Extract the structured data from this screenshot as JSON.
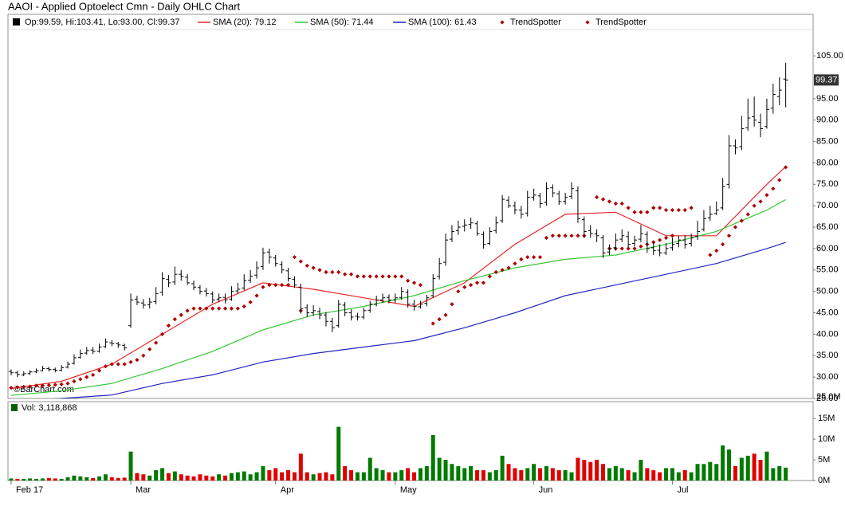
{
  "chart_data": {
    "type": "ohlc",
    "title": "AAOI - Applied Optoelect Cmn - Daily OHLC Chart",
    "watermark": "©BarChart.com",
    "xlim": [
      -0.5,
      127.35
    ],
    "xticks": [
      {
        "value": 0,
        "label": "Feb 17"
      },
      {
        "value": 19,
        "label": "Mar"
      },
      {
        "value": 42,
        "label": "Apr"
      },
      {
        "value": 61,
        "label": "May"
      },
      {
        "value": 83,
        "label": "Jun"
      },
      {
        "value": 105,
        "label": "Jul"
      }
    ],
    "ylim": [
      25,
      114.7
    ],
    "yticks": [
      {
        "value": 25,
        "label": "25.00"
      },
      {
        "value": 30,
        "label": "30.00"
      },
      {
        "value": 35,
        "label": "35.00"
      },
      {
        "value": 40,
        "label": "40.00"
      },
      {
        "value": 45,
        "label": "45.00"
      },
      {
        "value": 50,
        "label": "50.00"
      },
      {
        "value": 55,
        "label": "55.00"
      },
      {
        "value": 60,
        "label": "60.00"
      },
      {
        "value": 65,
        "label": "65.00"
      },
      {
        "value": 70,
        "label": "70.00"
      },
      {
        "value": 75,
        "label": "75.00"
      },
      {
        "value": 80,
        "label": "80.00"
      },
      {
        "value": 85,
        "label": "85.00"
      },
      {
        "value": 90,
        "label": "90.00"
      },
      {
        "value": 95,
        "label": "95.00"
      },
      {
        "value": 105,
        "label": "105.00"
      }
    ],
    "grid": false,
    "last_price": 99.37,
    "ohlc": {
      "name": "Op:99.59, Hi:103.41, Lo:93.00, Cl:99.37",
      "color": "#000000",
      "open": [
        31.3,
        31.0,
        30.5,
        30.8,
        31.2,
        31.5,
        32.0,
        31.8,
        31.6,
        32.3,
        33.2,
        34.6,
        35.6,
        36.3,
        36.0,
        37.1,
        38.0,
        37.8,
        37.4,
        42.0,
        48.2,
        47.3,
        46.9,
        47.6,
        49.8,
        52.8,
        52.2,
        54.0,
        53.3,
        51.8,
        50.9,
        50.1,
        49.4,
        48.2,
        48.6,
        48.2,
        50.1,
        50.8,
        52.6,
        53.8,
        55.8,
        59.2,
        57.8,
        56.3,
        54.8,
        52.8,
        51.0,
        46.2,
        45.0,
        45.3,
        44.5,
        43.0,
        42.0,
        46.8,
        45.0,
        44.2,
        44.0,
        45.6,
        47.0,
        48.0,
        48.6,
        48.0,
        48.6,
        49.8,
        47.0,
        46.4,
        47.2,
        49.0,
        53.5,
        56.8,
        62.2,
        64.2,
        65.2,
        65.6,
        65.8,
        63.3,
        61.2,
        64.2,
        66.5,
        71.3,
        70.0,
        69.0,
        68.3,
        72.0,
        72.3,
        70.8,
        74.2,
        72.8,
        71.0,
        72.2,
        73.5,
        66.8,
        64.2,
        63.4,
        62.5,
        59.2,
        60.2,
        62.2,
        62.8,
        61.2,
        62.2,
        63.3,
        60.2,
        59.6,
        59.0,
        60.2,
        61.2,
        62.0,
        61.2,
        62.8,
        64.5,
        67.2,
        68.2,
        69.5,
        75.0,
        84.0,
        83.8,
        88.2,
        90.8,
        89.5,
        88.5,
        92.8,
        95.5,
        99.59
      ],
      "high": [
        31.8,
        31.5,
        31.3,
        31.6,
        32.0,
        32.6,
        32.4,
        32.2,
        32.8,
        33.6,
        35.3,
        36.4,
        37.0,
        37.0,
        37.8,
        39.0,
        38.6,
        38.2,
        37.8,
        49.5,
        49.0,
        48.2,
        48.5,
        51.0,
        54.5,
        53.8,
        55.8,
        55.0,
        54.0,
        52.5,
        51.5,
        50.8,
        50.0,
        49.5,
        49.5,
        51.2,
        52.0,
        54.0,
        55.0,
        57.0,
        60.2,
        60.0,
        58.5,
        57.0,
        55.5,
        53.5,
        51.8,
        47.0,
        46.8,
        46.2,
        45.2,
        43.8,
        48.0,
        47.5,
        45.8,
        45.0,
        46.2,
        47.8,
        49.0,
        49.5,
        49.3,
        49.5,
        51.0,
        50.5,
        48.0,
        47.8,
        49.2,
        54.0,
        57.8,
        63.5,
        65.5,
        66.5,
        66.8,
        67.2,
        66.5,
        64.0,
        65.0,
        67.5,
        72.5,
        72.2,
        71.0,
        70.0,
        73.5,
        74.0,
        73.0,
        75.5,
        75.0,
        73.5,
        73.0,
        75.5,
        74.5,
        67.5,
        65.5,
        64.5,
        63.2,
        61.0,
        63.5,
        64.5,
        64.0,
        63.0,
        65.5,
        64.0,
        61.5,
        61.0,
        61.3,
        62.5,
        63.0,
        63.2,
        63.5,
        66.5,
        69.0,
        70.0,
        71.0,
        76.5,
        86.5,
        85.5,
        91.0,
        95.0,
        95.5,
        91.5,
        95.0,
        98.5,
        100.0,
        103.41
      ],
      "low": [
        30.4,
        30.0,
        30.2,
        30.5,
        30.9,
        31.3,
        31.3,
        31.1,
        31.3,
        32.0,
        32.9,
        34.3,
        35.2,
        35.4,
        35.7,
        36.8,
        37.2,
        36.8,
        36.2,
        41.5,
        46.8,
        46.0,
        46.0,
        47.0,
        49.0,
        51.0,
        51.5,
        52.5,
        51.5,
        50.3,
        49.3,
        48.8,
        47.3,
        47.5,
        47.2,
        47.8,
        49.5,
        50.3,
        52.0,
        53.0,
        55.0,
        56.5,
        55.8,
        54.2,
        52.3,
        50.8,
        44.8,
        44.0,
        44.3,
        43.5,
        41.8,
        40.5,
        41.5,
        44.2,
        43.2,
        43.2,
        43.5,
        45.0,
        46.5,
        47.3,
        47.2,
        47.3,
        48.0,
        46.2,
        45.5,
        46.0,
        46.5,
        48.5,
        52.8,
        56.0,
        61.5,
        63.2,
        64.0,
        64.6,
        63.0,
        60.0,
        60.8,
        63.5,
        66.0,
        69.5,
        68.0,
        67.0,
        67.5,
        71.2,
        69.5,
        70.0,
        72.0,
        70.2,
        70.3,
        71.5,
        66.0,
        62.5,
        62.5,
        61.5,
        57.8,
        58.5,
        59.5,
        61.5,
        60.3,
        60.5,
        61.5,
        59.0,
        58.5,
        58.2,
        58.5,
        59.5,
        60.3,
        60.0,
        60.5,
        62.0,
        64.0,
        66.5,
        67.8,
        69.0,
        74.0,
        82.0,
        83.0,
        87.5,
        88.5,
        86.0,
        88.0,
        91.5,
        93.5,
        93
      ],
      "close": [
        31.0,
        30.6,
        30.8,
        31.2,
        31.5,
        32.0,
        31.8,
        31.6,
        32.2,
        33.0,
        34.5,
        35.5,
        36.2,
        36.0,
        37.0,
        38.2,
        37.8,
        37.5,
        36.8,
        48.0,
        47.5,
        46.8,
        47.5,
        49.5,
        53.0,
        52.0,
        54.0,
        53.5,
        52.0,
        51.0,
        50.0,
        49.5,
        48.0,
        48.5,
        48.0,
        50.0,
        50.5,
        52.5,
        53.5,
        55.5,
        59.0,
        58.0,
        56.5,
        55.0,
        53.0,
        51.5,
        46.0,
        45.0,
        45.5,
        44.5,
        43.0,
        41.5,
        47.0,
        45.0,
        44.0,
        44.0,
        45.5,
        47.0,
        48.0,
        48.5,
        48.0,
        48.5,
        50.0,
        47.0,
        46.5,
        47.0,
        48.5,
        53.0,
        56.5,
        62.0,
        64.0,
        65.0,
        65.5,
        66.0,
        63.5,
        61.0,
        64.0,
        66.0,
        71.5,
        70.0,
        69.0,
        68.0,
        72.0,
        72.5,
        70.5,
        74.0,
        73.0,
        71.0,
        72.0,
        74.0,
        67.0,
        64.0,
        63.5,
        63.0,
        59.0,
        60.0,
        62.0,
        63.0,
        61.0,
        62.0,
        63.5,
        60.0,
        59.5,
        59.0,
        60.0,
        61.0,
        62.0,
        61.0,
        62.5,
        64.0,
        67.0,
        68.0,
        69.0,
        74.5,
        84.0,
        83.5,
        88.0,
        90.5,
        90.0,
        88.0,
        92.5,
        96.0,
        97.0,
        99.37
      ]
    },
    "lines": [
      {
        "name": "SMA (20): 79.12",
        "color": "#e8262a",
        "x": [
          0,
          8,
          16,
          24,
          32,
          40,
          48,
          56,
          64,
          72,
          80,
          88,
          96,
          104,
          112,
          120,
          123
        ],
        "values": [
          27.3,
          29,
          33,
          40,
          47,
          52,
          50.5,
          48.5,
          46.5,
          52,
          61,
          68,
          68.5,
          63,
          63,
          75,
          79.12
        ]
      },
      {
        "name": "SMA (50): 71.44",
        "color": "#35c635",
        "x": [
          0,
          8,
          16,
          24,
          32,
          40,
          48,
          56,
          64,
          72,
          80,
          88,
          96,
          104,
          112,
          120,
          123
        ],
        "values": [
          25.7,
          26.8,
          28.5,
          32,
          36,
          41,
          44.5,
          46.5,
          49,
          52.5,
          55.5,
          57.5,
          58.5,
          61,
          64,
          69,
          71.44
        ]
      },
      {
        "name": "SMA (100): 61.43",
        "color": "#2323c0",
        "x": [
          0,
          8,
          16,
          24,
          32,
          40,
          48,
          56,
          64,
          72,
          80,
          88,
          96,
          104,
          112,
          120,
          123
        ],
        "values": [
          24.3,
          25,
          25.8,
          28.5,
          30.5,
          33.5,
          35.5,
          37,
          38.5,
          41.5,
          45,
          49,
          51.5,
          54,
          56.5,
          60,
          61.43
        ]
      }
    ],
    "markers": [
      {
        "name": "TrendSpotter",
        "color": "#b00000",
        "values": [
          27.5,
          27.6,
          27.7,
          27.8,
          28.0,
          28.0,
          28.1,
          28.2,
          28.3,
          28.5,
          29.0,
          29.5,
          30.0,
          30.5,
          31.5,
          32.5,
          33.0,
          33.0,
          33.0,
          33.5,
          34,
          35,
          36.5,
          38,
          40,
          42,
          43.5,
          44.5,
          45.5,
          46,
          46,
          46,
          46,
          46,
          46,
          46,
          46,
          46.5,
          47.5,
          49,
          51,
          51.5,
          51.5,
          51.5,
          51.5,
          null,
          45.5,
          null,
          null,
          null,
          null,
          null,
          null,
          null,
          null,
          null,
          null,
          null,
          null,
          null,
          null,
          null,
          null,
          null,
          null,
          null,
          null,
          42.5,
          43.5,
          44.5,
          47,
          50,
          51,
          51.5,
          52,
          52,
          53.5,
          54.5,
          55,
          55.5,
          56.5,
          57.5,
          58,
          58,
          58,
          62.5,
          63,
          63,
          63,
          63,
          63,
          63,
          null,
          null,
          null,
          60,
          60,
          60,
          60,
          60,
          60.5,
          61,
          61.5,
          62,
          62.5,
          63,
          null,
          null,
          null,
          null,
          null,
          58.5,
          59.5,
          61,
          63,
          65,
          66.5,
          68,
          70,
          71,
          72.5,
          74,
          76,
          79
        ]
      },
      {
        "name": "TrendSpotter",
        "color": "#b00000",
        "values": [
          null,
          null,
          null,
          null,
          null,
          null,
          null,
          null,
          null,
          null,
          null,
          null,
          null,
          null,
          null,
          null,
          null,
          null,
          null,
          null,
          null,
          null,
          null,
          null,
          null,
          null,
          null,
          null,
          null,
          null,
          null,
          null,
          null,
          null,
          null,
          null,
          null,
          null,
          null,
          null,
          null,
          null,
          null,
          null,
          null,
          58,
          57,
          56,
          55.5,
          55,
          54.5,
          54.5,
          54.5,
          54,
          54,
          53.5,
          53.5,
          53.5,
          53.5,
          53.5,
          53.5,
          53.5,
          53.5,
          52.5,
          52,
          51.5,
          null,
          null,
          null,
          null,
          null,
          null,
          null,
          null,
          null,
          null,
          null,
          null,
          null,
          null,
          null,
          null,
          null,
          null,
          null,
          null,
          null,
          null,
          null,
          null,
          null,
          null,
          null,
          72,
          71.5,
          71,
          70.5,
          70.5,
          69.5,
          68.5,
          68.5,
          68.5,
          69.5,
          69.5,
          69,
          69,
          69,
          69,
          69.5,
          null,
          null,
          null,
          null,
          null,
          null,
          null,
          null,
          null,
          null,
          null,
          null,
          null,
          null,
          null
        ]
      }
    ],
    "volume": {
      "name": "Vol: 3,118,868",
      "color": "#006400",
      "up_color": "#007a00",
      "down_color": "#e00000",
      "ylim": [
        0,
        18.7
      ],
      "yticks": [
        {
          "value": 0,
          "label": "0M"
        },
        {
          "value": 5,
          "label": "5M"
        },
        {
          "value": 10,
          "label": "10M"
        },
        {
          "value": 15,
          "label": "15M"
        }
      ],
      "top_label": "25.0M",
      "values": [
        0.5,
        0.4,
        0.4,
        0.5,
        0.4,
        0.5,
        0.6,
        0.5,
        0.4,
        0.8,
        1.2,
        1.0,
        0.8,
        0.6,
        1.0,
        1.5,
        0.8,
        0.6,
        0.7,
        7.0,
        1.8,
        1.5,
        1.2,
        2.5,
        3.0,
        1.8,
        2.2,
        1.5,
        1.2,
        1.0,
        1.5,
        1.2,
        1.0,
        1.5,
        1.2,
        1.8,
        2.0,
        2.2,
        1.5,
        2.0,
        3.5,
        2.5,
        3.0,
        2.0,
        2.5,
        2.0,
        6.5,
        2.0,
        1.5,
        1.8,
        2.0,
        1.5,
        13.0,
        3.5,
        2.5,
        2.0,
        2.0,
        5.5,
        3.0,
        2.5,
        2.0,
        2.0,
        2.5,
        3.0,
        2.0,
        3.0,
        3.5,
        11.0,
        5.5,
        5.0,
        4.0,
        3.5,
        3.0,
        3.5,
        2.5,
        2.5,
        2.0,
        2.5,
        6.0,
        4.0,
        3.0,
        2.5,
        3.0,
        4.0,
        3.0,
        3.5,
        3.0,
        2.5,
        2.5,
        2.0,
        5.5,
        5.0,
        4.5,
        5.0,
        4.0,
        3.0,
        3.5,
        3.0,
        2.5,
        2.0,
        5.0,
        3.0,
        2.5,
        2.0,
        3.0,
        3.0,
        2.0,
        2.5,
        2.0,
        4.0,
        4.0,
        4.5,
        4.0,
        8.5,
        7.5,
        3.5,
        5.5,
        6.0,
        6.5,
        5.0,
        7.0,
        3.0,
        3.5,
        3.118868
      ]
    }
  }
}
